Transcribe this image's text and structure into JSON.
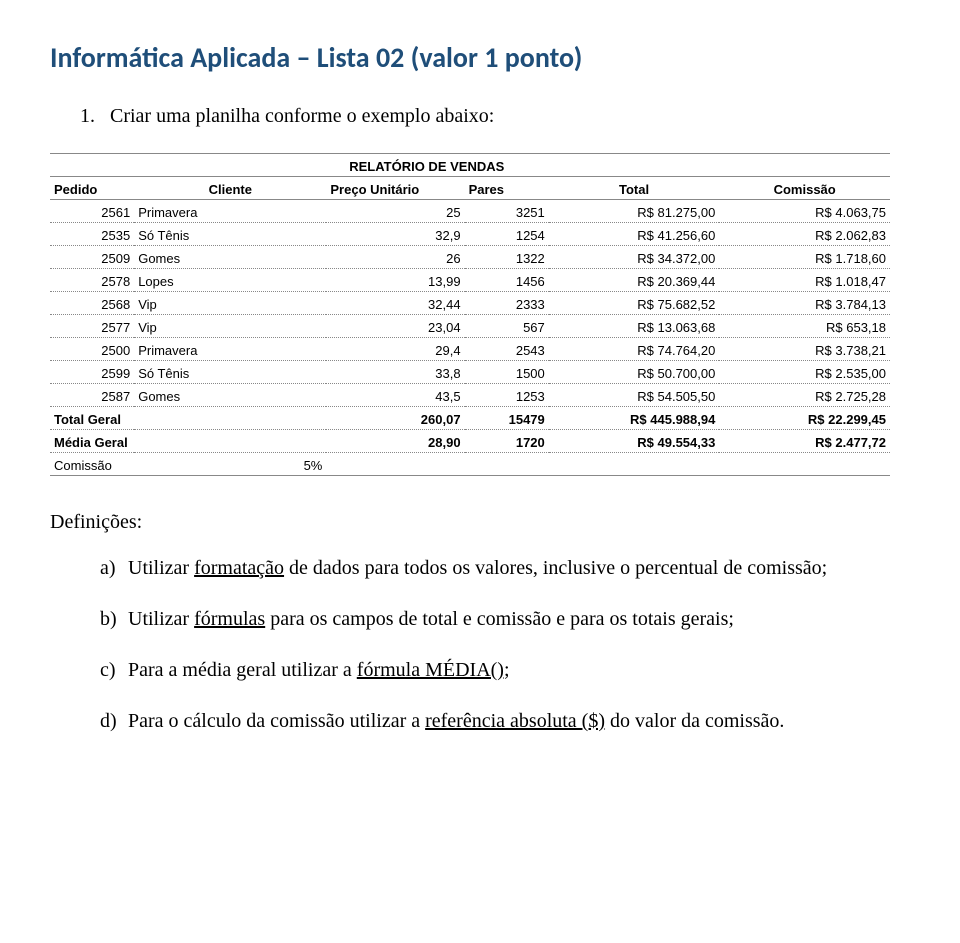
{
  "title": "Informática Aplicada – Lista 02 (valor 1 ponto)",
  "item1_num": "1.",
  "item1_text": "Criar uma planilha conforme o exemplo abaixo:",
  "report_title": "RELATÓRIO DE VENDAS",
  "headers": {
    "pedido": "Pedido",
    "cliente": "Cliente",
    "preco": "Preço Unitário",
    "pares": "Pares",
    "total": "Total",
    "comissao": "Comissão"
  },
  "rows": [
    {
      "pedido": "2561",
      "cliente": "Primavera",
      "preco": "25",
      "pares": "3251",
      "total": "R$ 81.275,00",
      "comissao": "R$ 4.063,75"
    },
    {
      "pedido": "2535",
      "cliente": "Só Tênis",
      "preco": "32,9",
      "pares": "1254",
      "total": "R$ 41.256,60",
      "comissao": "R$ 2.062,83"
    },
    {
      "pedido": "2509",
      "cliente": "Gomes",
      "preco": "26",
      "pares": "1322",
      "total": "R$ 34.372,00",
      "comissao": "R$ 1.718,60"
    },
    {
      "pedido": "2578",
      "cliente": "Lopes",
      "preco": "13,99",
      "pares": "1456",
      "total": "R$ 20.369,44",
      "comissao": "R$ 1.018,47"
    },
    {
      "pedido": "2568",
      "cliente": "Vip",
      "preco": "32,44",
      "pares": "2333",
      "total": "R$ 75.682,52",
      "comissao": "R$ 3.784,13"
    },
    {
      "pedido": "2577",
      "cliente": "Vip",
      "preco": "23,04",
      "pares": "567",
      "total": "R$ 13.063,68",
      "comissao": "R$ 653,18"
    },
    {
      "pedido": "2500",
      "cliente": "Primavera",
      "preco": "29,4",
      "pares": "2543",
      "total": "R$ 74.764,20",
      "comissao": "R$ 3.738,21"
    },
    {
      "pedido": "2599",
      "cliente": "Só Tênis",
      "preco": "33,8",
      "pares": "1500",
      "total": "R$ 50.700,00",
      "comissao": "R$ 2.535,00"
    },
    {
      "pedido": "2587",
      "cliente": "Gomes",
      "preco": "43,5",
      "pares": "1253",
      "total": "R$ 54.505,50",
      "comissao": "R$ 2.725,28"
    }
  ],
  "total_geral": {
    "label": "Total Geral",
    "preco": "260,07",
    "pares": "15479",
    "total": "R$   445.988,94",
    "comissao": "R$    22.299,45"
  },
  "media_geral": {
    "label": "Média Geral",
    "preco": "28,90",
    "pares": "1720",
    "total": "R$     49.554,33",
    "comissao": "R$      2.477,72"
  },
  "comissao_row": {
    "label": "Comissão",
    "value": "5%"
  },
  "defs_label": "Definições:",
  "defs": [
    {
      "letter": "a)",
      "pre": "Utilizar ",
      "u": "formatação",
      "post": " de dados para todos os valores, inclusive o percentual de comissão;"
    },
    {
      "letter": "b)",
      "pre": "Utilizar ",
      "u": "fórmulas",
      "post": " para os campos de total e comissão e para os totais gerais;"
    },
    {
      "letter": "c)",
      "pre": "Para a média geral utilizar a ",
      "u": "fórmula MÉDIA()",
      ";post": ";"
    },
    {
      "letter": "d)",
      "pre": "Para o cálculo da comissão utilizar a ",
      "u": "referência absoluta ($)",
      "post": " do valor da comissão."
    }
  ]
}
